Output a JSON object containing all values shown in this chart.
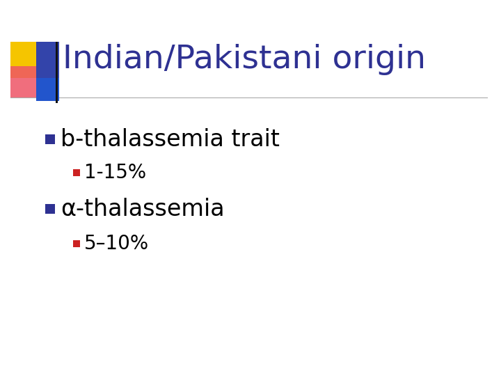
{
  "title": "Indian/Pakistani origin",
  "title_color": "#2E3192",
  "title_fontsize": 34,
  "background_color": "#FFFFFF",
  "bullet1_text": "b-thalassemia trait",
  "bullet1_sub": "1-15%",
  "bullet2_text": "α-thalassemia",
  "bullet2_sub": "5–10%",
  "bullet_color": "#2E3192",
  "subbullet_color": "#CC2222",
  "text_color": "#000000",
  "bullet_fontsize": 24,
  "subbullet_fontsize": 20,
  "line_color": "#AAAAAA",
  "dec_yellow": "#F5C500",
  "dec_red": "#EE5566",
  "dec_blue_top": "#3344AA",
  "dec_blue_bot": "#2255CC",
  "dec_vline": "#111111"
}
